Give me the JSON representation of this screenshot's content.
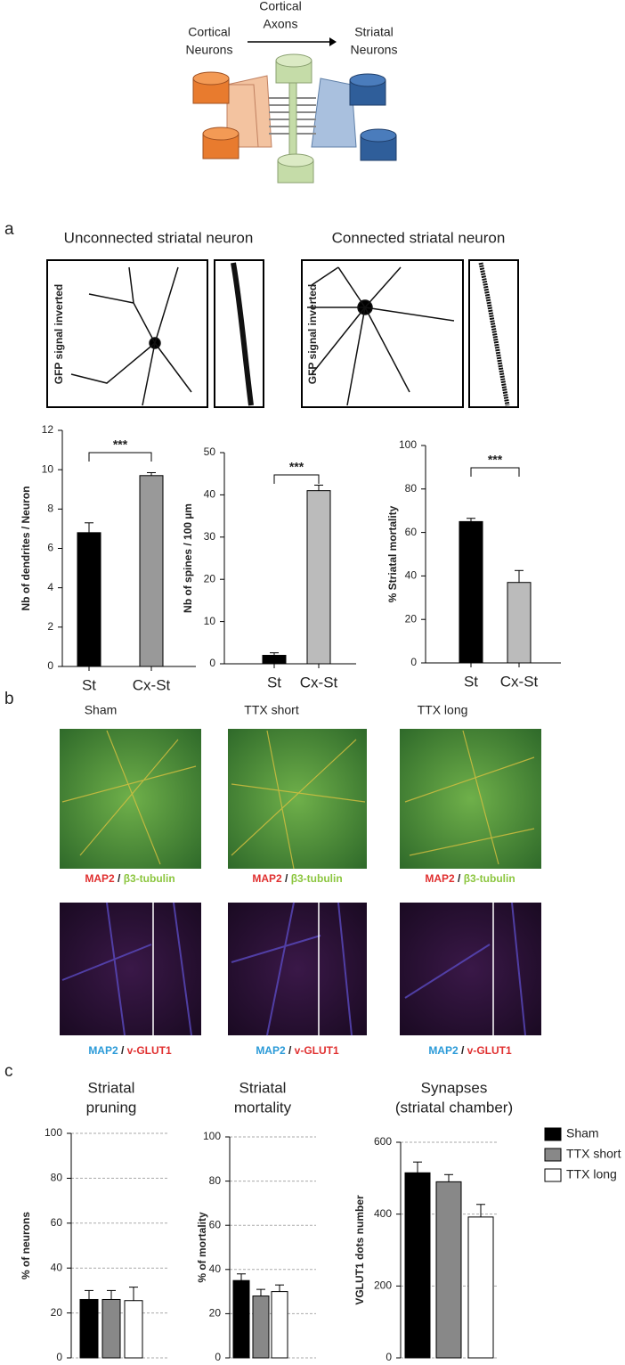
{
  "diagram": {
    "cortical_axons": [
      "Cortical",
      "Axons"
    ],
    "cortical_neurons": [
      "Cortical",
      "Neurons"
    ],
    "striatal_neurons": [
      "Striatal",
      "Neurons"
    ]
  },
  "panel_a": {
    "label": "a",
    "titles": [
      "Unconnected striatal neuron",
      "Connected striatal neuron"
    ],
    "image_labels": [
      "GFP signal inverted",
      "GFP signal inverted"
    ]
  },
  "panel_b": {
    "label": "b",
    "conditions": [
      "Sham",
      "TTX short",
      "TTX long"
    ],
    "stain_top": [
      {
        "a": "MAP2",
        "sep": " / ",
        "b": "β3-tubulin"
      },
      {
        "a": "MAP2",
        "sep": " / ",
        "b": "β3-tubulin"
      },
      {
        "a": "MAP2",
        "sep": " / ",
        "b": "β3-tubulin"
      }
    ],
    "stain_bottom": [
      {
        "a": "MAP2",
        "sep": " / ",
        "b": "v-GLUT1"
      },
      {
        "a": "MAP2",
        "sep": " / ",
        "b": "v-GLUT1"
      },
      {
        "a": "MAP2",
        "sep": " / ",
        "b": "v-GLUT1"
      }
    ]
  },
  "panel_c": {
    "label": "c"
  },
  "chart_data": [
    {
      "type": "bar",
      "ylabel": "Nb of dendrites / Neuron",
      "categories": [
        "St",
        "Cx-St"
      ],
      "values": [
        6.8,
        9.7
      ],
      "errors": [
        0.5,
        0.15
      ],
      "colors": [
        "#000000",
        "#999999"
      ],
      "ylim": [
        0,
        12
      ],
      "yticks": [
        0,
        2,
        4,
        6,
        8,
        10,
        12
      ],
      "annotation": "***",
      "grid": false
    },
    {
      "type": "bar",
      "ylabel": "Nb of spines / 100 µm",
      "categories": [
        "St",
        "Cx-St"
      ],
      "values": [
        2,
        41
      ],
      "errors": [
        0.6,
        1.3
      ],
      "colors": [
        "#000000",
        "#bbbbbb"
      ],
      "ylim": [
        0,
        50
      ],
      "yticks": [
        0,
        10,
        20,
        30,
        40,
        50
      ],
      "annotation": "***",
      "grid": false
    },
    {
      "type": "bar",
      "ylabel": "% Striatal mortality",
      "categories": [
        "St",
        "Cx-St"
      ],
      "values": [
        65,
        37
      ],
      "errors": [
        1.5,
        5.5
      ],
      "colors": [
        "#000000",
        "#bbbbbb"
      ],
      "ylim": [
        0,
        100
      ],
      "yticks": [
        0,
        20,
        40,
        60,
        80,
        100
      ],
      "annotation": "***",
      "grid": false
    },
    {
      "type": "bar",
      "title": [
        "Striatal",
        "pruning"
      ],
      "ylabel": "% of neurons",
      "series": [
        {
          "color": "#000000",
          "values": [
            26
          ],
          "errors": [
            4
          ]
        },
        {
          "color": "#888888",
          "values": [
            26
          ],
          "errors": [
            4
          ]
        },
        {
          "color": "#ffffff",
          "values": [
            25.5
          ],
          "errors": [
            6
          ]
        }
      ],
      "ylim": [
        0,
        100
      ],
      "yticks": [
        0,
        20,
        40,
        60,
        80,
        100
      ],
      "grid": true
    },
    {
      "type": "bar",
      "title": [
        "Striatal",
        "mortality"
      ],
      "ylabel": "% of mortality",
      "series": [
        {
          "color": "#000000",
          "values": [
            35
          ],
          "errors": [
            3
          ]
        },
        {
          "color": "#888888",
          "values": [
            28
          ],
          "errors": [
            3
          ]
        },
        {
          "color": "#ffffff",
          "values": [
            30
          ],
          "errors": [
            3
          ]
        }
      ],
      "ylim": [
        0,
        100
      ],
      "yticks": [
        0,
        20,
        40,
        60,
        80,
        100
      ],
      "grid": true
    },
    {
      "type": "bar",
      "title": [
        "Synapses",
        "(striatal chamber)"
      ],
      "ylabel": "VGLUT1 dots number",
      "series": [
        {
          "name": "Sham",
          "color": "#000000",
          "values": [
            515
          ],
          "errors": [
            30
          ]
        },
        {
          "name": "TTX short",
          "color": "#888888",
          "values": [
            490
          ],
          "errors": [
            20
          ]
        },
        {
          "name": "TTX long",
          "color": "#ffffff",
          "values": [
            392
          ],
          "errors": [
            35
          ]
        }
      ],
      "ylim": [
        0,
        600
      ],
      "yticks": [
        0,
        200,
        400,
        600
      ],
      "grid": true,
      "legend": "right"
    }
  ]
}
